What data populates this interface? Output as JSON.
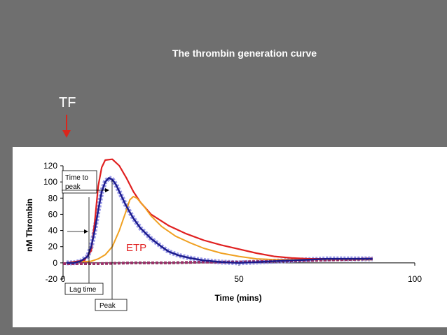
{
  "slide": {
    "title": "The thrombin generation curve",
    "tf_label": "TF",
    "colors": {
      "background": "#6f6f6f",
      "tf_arrow": "#d9261c"
    }
  },
  "chart_data": {
    "type": "line",
    "title": "The thrombin generation curve",
    "xlabel": "Time (mins)",
    "ylabel": "nM Thrombin",
    "xlim": [
      0,
      100
    ],
    "ylim": [
      -20,
      120
    ],
    "x_ticks": [
      0,
      50,
      100
    ],
    "y_ticks": [
      -20,
      0,
      20,
      40,
      60,
      80,
      100,
      120
    ],
    "grid": false,
    "legend": "none",
    "series": [
      {
        "color": "#e02020",
        "x": [
          1,
          6,
          8,
          9,
          10,
          11,
          12,
          14,
          16,
          18,
          20,
          22,
          25,
          30,
          35,
          40,
          45,
          50,
          55,
          60,
          65,
          70,
          75,
          80,
          85,
          88
        ],
        "y": [
          0,
          3,
          15,
          50,
          95,
          118,
          127,
          128,
          120,
          105,
          88,
          75,
          60,
          46,
          36,
          28,
          22,
          17,
          12,
          8,
          6,
          5,
          5,
          5,
          5,
          5
        ]
      },
      {
        "color": "#f0a020",
        "x": [
          1,
          8,
          10,
          12,
          14,
          16,
          18,
          19,
          20,
          21,
          23,
          25,
          28,
          32,
          36,
          40,
          45,
          50,
          55,
          60,
          65,
          70,
          75,
          80,
          85,
          88
        ],
        "y": [
          0,
          2,
          5,
          10,
          20,
          40,
          65,
          78,
          82,
          80,
          70,
          58,
          45,
          33,
          25,
          18,
          12,
          8,
          5,
          4,
          4,
          4,
          4,
          4,
          4,
          4
        ]
      },
      {
        "color": "#1c1c8c",
        "x": [
          1,
          3,
          5,
          7,
          8,
          9,
          10,
          11,
          12,
          13,
          14,
          15,
          16,
          18,
          20,
          22,
          25,
          28,
          30,
          33,
          36,
          40,
          45,
          50,
          55,
          60,
          65,
          70,
          75,
          80,
          85,
          88
        ],
        "y": [
          0,
          0,
          2,
          8,
          20,
          40,
          65,
          88,
          100,
          105,
          103,
          97,
          88,
          70,
          55,
          43,
          30,
          20,
          14,
          9,
          6,
          3,
          1,
          0,
          1,
          2,
          3,
          4,
          5,
          5,
          5,
          5
        ]
      },
      {
        "color": "#9090e8",
        "x": [
          1,
          3,
          5,
          7,
          8,
          9,
          10,
          11,
          12,
          13,
          14,
          15,
          16,
          18,
          20,
          22,
          25,
          28,
          30,
          33,
          36,
          40,
          45,
          50,
          55,
          60,
          65,
          70,
          75,
          80,
          85,
          88
        ],
        "y": [
          0,
          0,
          2,
          8,
          20,
          40,
          65,
          88,
          100,
          105,
          103,
          97,
          88,
          70,
          55,
          43,
          30,
          20,
          14,
          9,
          6,
          3,
          1,
          0,
          1,
          2,
          3,
          4,
          5,
          5,
          5,
          5
        ]
      },
      {
        "color": "#9a3068",
        "x": [
          0,
          10,
          20,
          30,
          40,
          50,
          60,
          70,
          80,
          88
        ],
        "y": [
          -1,
          -1,
          0,
          0,
          1,
          1,
          2,
          3,
          4,
          5
        ]
      }
    ],
    "annotations": [
      {
        "text": "Time to peak",
        "lines": [
          "Time to",
          "peak"
        ]
      },
      {
        "text": "Lag time"
      },
      {
        "text": "Peak"
      },
      {
        "text": "ETP",
        "color": "#e02020"
      }
    ]
  }
}
